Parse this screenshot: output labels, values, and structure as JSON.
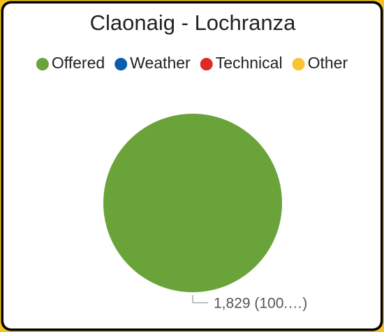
{
  "chart_data": {
    "type": "pie",
    "title": "Claonaig - Lochranza",
    "categories": [
      "Offered",
      "Weather",
      "Technical",
      "Other"
    ],
    "values": [
      1829,
      0,
      0,
      0
    ],
    "value_labels": [
      "1,829 (100.…)",
      null,
      null,
      null
    ],
    "colors": [
      "#6aa33a",
      "#0b5cad",
      "#dd2b27",
      "#f9c332"
    ],
    "legend": "top"
  }
}
